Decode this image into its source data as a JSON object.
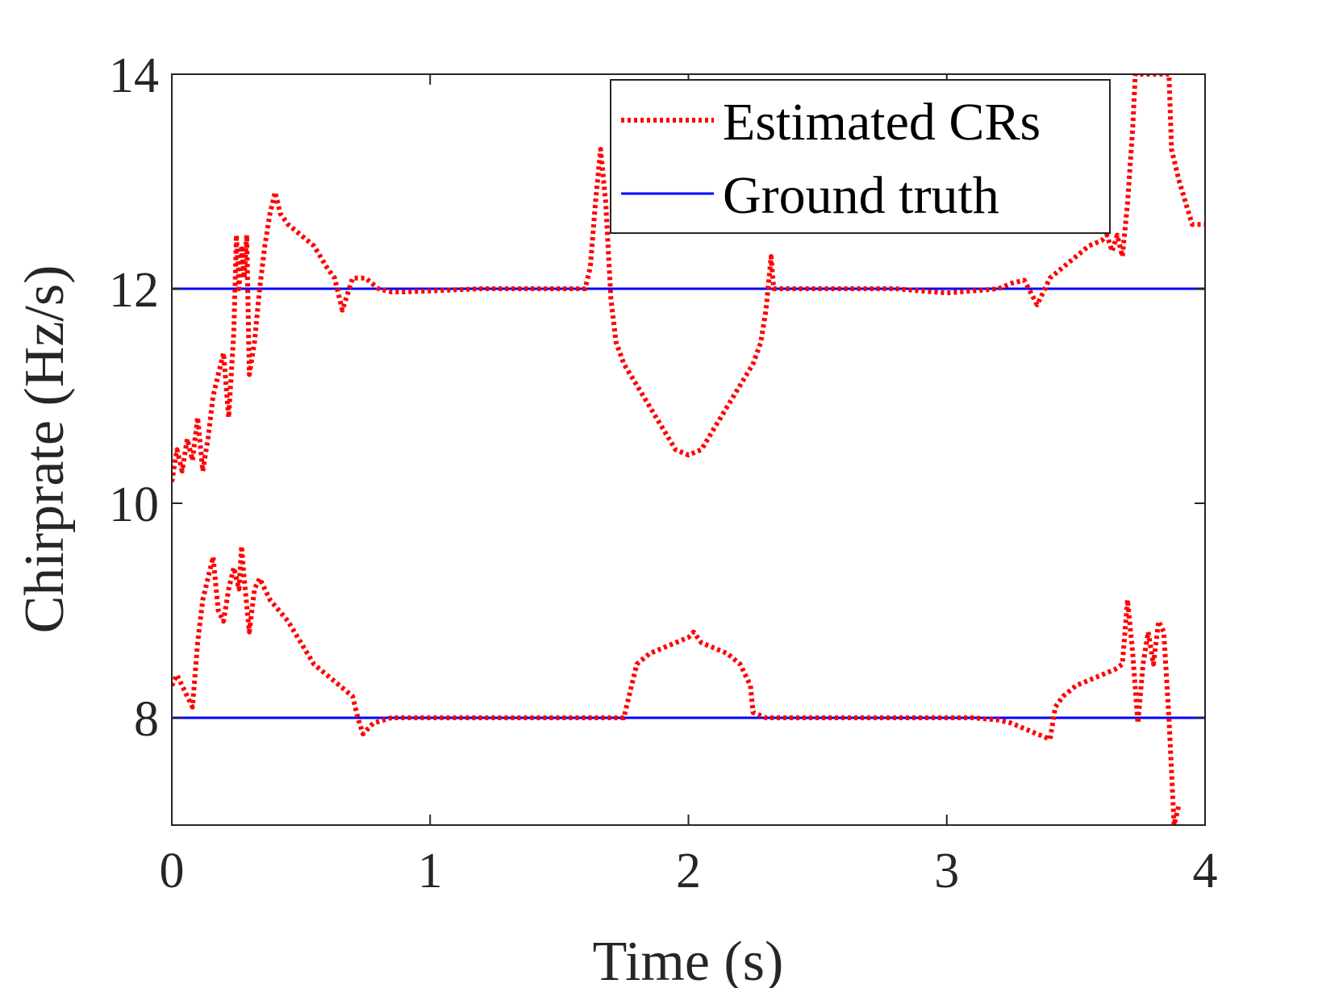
{
  "chart_data": {
    "type": "line",
    "title": "",
    "xlabel": "Time (s)",
    "ylabel": "Chirprate (Hz/s)",
    "xlim": [
      0,
      4
    ],
    "ylim": [
      7,
      14
    ],
    "xticks": [
      0,
      1,
      2,
      3,
      4
    ],
    "yticks": [
      8,
      10,
      12,
      14
    ],
    "xtick_labels": [
      "0",
      "1",
      "2",
      "3",
      "4"
    ],
    "ytick_labels": [
      "8",
      "10",
      "12",
      "14"
    ],
    "grid": false,
    "legend_position": "top-right",
    "series": [
      {
        "name": "Estimated CRs",
        "style": "dotted",
        "color": "#ff0000",
        "segments": [
          {
            "x": [
              0,
              0.02,
              0.04,
              0.06,
              0.08,
              0.1,
              0.12,
              0.14,
              0.16,
              0.18,
              0.2,
              0.22,
              0.24,
              0.25,
              0.26,
              0.27,
              0.28,
              0.29,
              0.3,
              0.32,
              0.34,
              0.36,
              0.38,
              0.4,
              0.42,
              0.45,
              0.5,
              0.55,
              0.6,
              0.63,
              0.66,
              0.7,
              0.75,
              0.8,
              0.85,
              0.9,
              1.0,
              1.1,
              1.2,
              1.3,
              1.4,
              1.5,
              1.6,
              1.62,
              1.64,
              1.66,
              1.68,
              1.7,
              1.72,
              1.75,
              1.8,
              1.85,
              1.9,
              1.95,
              2.0,
              2.05,
              2.1,
              2.15,
              2.2,
              2.25,
              2.28,
              2.3,
              2.32,
              2.33,
              2.4,
              2.6,
              2.8,
              3.0,
              3.1,
              3.2,
              3.25,
              3.3,
              3.35,
              3.4,
              3.45,
              3.5,
              3.55,
              3.6,
              3.62,
              3.64,
              3.66,
              3.68,
              3.7,
              3.72,
              3.73,
              3.86,
              3.87,
              3.9,
              3.95,
              4.0
            ],
            "y": [
              10.2,
              10.5,
              10.3,
              10.6,
              10.4,
              10.8,
              10.3,
              10.6,
              11.0,
              11.2,
              11.4,
              10.8,
              11.6,
              12.5,
              12.0,
              12.4,
              12.1,
              12.5,
              11.2,
              11.5,
              12.0,
              12.4,
              12.7,
              12.9,
              12.7,
              12.6,
              12.5,
              12.4,
              12.2,
              12.1,
              11.8,
              12.1,
              12.1,
              12.0,
              11.97,
              11.97,
              11.98,
              11.99,
              12.0,
              12.0,
              12.0,
              12.0,
              12.0,
              12.2,
              12.8,
              13.3,
              12.8,
              11.9,
              11.5,
              11.3,
              11.1,
              10.9,
              10.7,
              10.5,
              10.45,
              10.5,
              10.7,
              10.9,
              11.1,
              11.3,
              11.5,
              11.8,
              12.3,
              12.0,
              12.0,
              12.0,
              12.0,
              11.96,
              11.98,
              12.0,
              12.05,
              12.08,
              11.85,
              12.1,
              12.2,
              12.3,
              12.4,
              12.45,
              12.5,
              12.35,
              12.5,
              12.3,
              12.8,
              13.5,
              14.0,
              14.0,
              13.3,
              13.0,
              12.6,
              12.6
            ]
          },
          {
            "x": [
              0,
              0.02,
              0.04,
              0.06,
              0.08,
              0.1,
              0.12,
              0.14,
              0.16,
              0.18,
              0.2,
              0.22,
              0.24,
              0.26,
              0.27,
              0.28,
              0.3,
              0.32,
              0.34,
              0.38,
              0.45,
              0.5,
              0.55,
              0.6,
              0.65,
              0.7,
              0.72,
              0.74,
              0.78,
              0.85,
              1.0,
              1.2,
              1.4,
              1.6,
              1.75,
              1.76,
              1.78,
              1.8,
              1.85,
              1.9,
              1.95,
              2.0,
              2.02,
              2.05,
              2.1,
              2.15,
              2.2,
              2.22,
              2.24,
              2.25,
              2.3,
              2.5,
              2.7,
              2.9,
              3.1,
              3.2,
              3.25,
              3.3,
              3.35,
              3.38,
              3.4,
              3.42,
              3.45,
              3.5,
              3.55,
              3.6,
              3.65,
              3.68,
              3.7,
              3.72,
              3.74,
              3.76,
              3.78,
              3.8,
              3.82,
              3.84,
              3.86,
              3.88,
              3.9
            ],
            "y": [
              8.3,
              8.4,
              8.3,
              8.2,
              8.1,
              8.7,
              9.1,
              9.3,
              9.5,
              9.0,
              8.9,
              9.2,
              9.4,
              9.2,
              9.6,
              9.3,
              8.8,
              9.2,
              9.3,
              9.1,
              8.9,
              8.7,
              8.5,
              8.4,
              8.3,
              8.2,
              8.0,
              7.85,
              7.95,
              8.0,
              8.0,
              8.0,
              8.0,
              8.0,
              8.0,
              8.1,
              8.3,
              8.5,
              8.6,
              8.65,
              8.7,
              8.75,
              8.8,
              8.7,
              8.65,
              8.6,
              8.5,
              8.4,
              8.3,
              8.05,
              8.0,
              8.0,
              8.0,
              8.0,
              8.0,
              7.98,
              7.95,
              7.9,
              7.85,
              7.82,
              7.8,
              8.1,
              8.2,
              8.3,
              8.35,
              8.4,
              8.45,
              8.5,
              9.1,
              8.6,
              7.95,
              8.5,
              8.8,
              8.5,
              8.9,
              8.8,
              8.0,
              7.0,
              7.2
            ]
          }
        ]
      },
      {
        "name": "Ground truth",
        "style": "solid",
        "color": "#0000ff",
        "lines": [
          {
            "x": [
              0,
              4
            ],
            "y": [
              12,
              12
            ]
          },
          {
            "x": [
              0,
              4
            ],
            "y": [
              8,
              8
            ]
          }
        ]
      }
    ]
  }
}
